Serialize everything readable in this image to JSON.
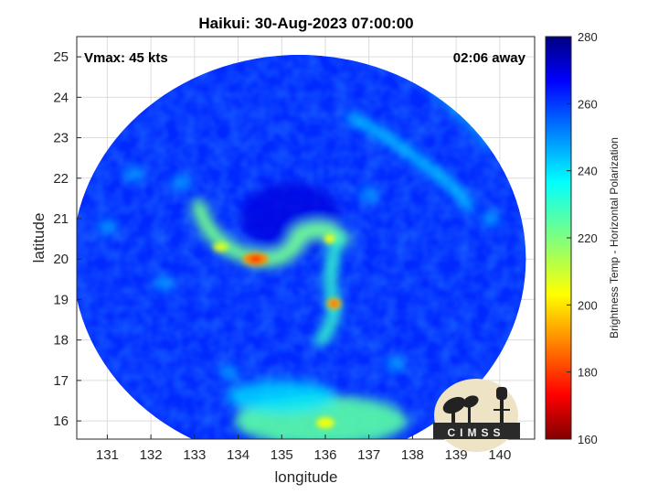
{
  "chart_data": {
    "type": "heatmap",
    "title": "Haikui: 30-Aug-2023 07:00:00",
    "xlabel": "longitude",
    "ylabel": "latitude",
    "xlim": [
      130.3,
      140.8
    ],
    "ylim": [
      15.55,
      25.5
    ],
    "x_ticks": [
      "131",
      "132",
      "133",
      "134",
      "135",
      "136",
      "137",
      "138",
      "139",
      "140"
    ],
    "y_ticks": [
      "16",
      "17",
      "18",
      "19",
      "20",
      "21",
      "22",
      "23",
      "24",
      "25"
    ],
    "grid": true,
    "annotations": {
      "vmax": "Vmax: 45 kts",
      "away": "02:06 away"
    },
    "colorbar": {
      "label": "Brightness Temp - Horizontal Polarization",
      "range": [
        160,
        280
      ],
      "ticks": [
        "160",
        "180",
        "200",
        "220",
        "240",
        "260",
        "280"
      ],
      "colormap": "jet"
    },
    "swath": {
      "center": [
        135.4,
        20.0
      ],
      "radius_lon": 5.2,
      "radius_lat": 5.05
    },
    "features": [
      {
        "name": "background",
        "tb": 262
      },
      {
        "name": "center-dark",
        "lon": 135.2,
        "lat": 21.0,
        "tb": 270
      },
      {
        "name": "rainband-west",
        "lon": 133.6,
        "lat": 20.3,
        "tb": 222
      },
      {
        "name": "hot-spot-west",
        "lon": 134.4,
        "lat": 20.0,
        "tb": 190
      },
      {
        "name": "rainband-east",
        "lon": 136.1,
        "lat": 20.0,
        "tb": 230
      },
      {
        "name": "hot-spot-east",
        "lon": 136.2,
        "lat": 18.9,
        "tb": 195
      },
      {
        "name": "south-convection",
        "lon": 135.9,
        "lat": 16.0,
        "tb": 225
      },
      {
        "name": "northeast-band",
        "lon": 137.8,
        "lat": 22.7,
        "tb": 238
      }
    ]
  },
  "logo": {
    "text": "CIMSS"
  },
  "colors": {
    "ocean_blue": "#1f3fe0",
    "frame": "#262626"
  }
}
